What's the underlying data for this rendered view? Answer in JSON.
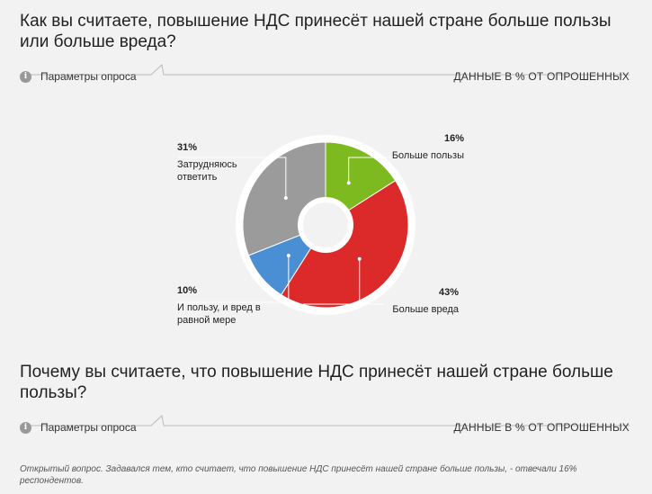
{
  "questions": [
    {
      "title": "Как вы считаете, повышение НДС принесёт нашей стране больше пользы или больше вреда?",
      "params_label": "Параметры опроса",
      "data_note": "ДАННЫЕ В % ОТ ОПРОШЕННЫХ"
    },
    {
      "title": "Почему вы считаете, что повышение НДС принесёт нашей стране больше пользы?",
      "params_label": "Параметры опроса",
      "data_note": "ДАННЫЕ В % ОТ ОПРОШЕННЫХ",
      "note": "Открытый вопрос. Задавался тем, кто считает, что повышение НДС принесёт нашей стране больше пользы, - отвечали 16% респондентов."
    }
  ],
  "icons": {
    "info": "info-icon"
  },
  "chart_data": {
    "type": "pie",
    "variant": "donut",
    "unit": "%",
    "slices": [
      {
        "label": "Больше пользы",
        "value": 16,
        "value_label": "16%",
        "color": "#7dba1f"
      },
      {
        "label": "Больше вреда",
        "value": 43,
        "value_label": "43%",
        "color": "#dc2a2a"
      },
      {
        "label": "И пользу, и вред в равной мере",
        "value": 10,
        "value_label": "10%",
        "color": "#4a8fd4"
      },
      {
        "label": "Затрудняюсь ответить",
        "value": 31,
        "value_label": "31%",
        "color": "#9b9b9b"
      }
    ]
  }
}
